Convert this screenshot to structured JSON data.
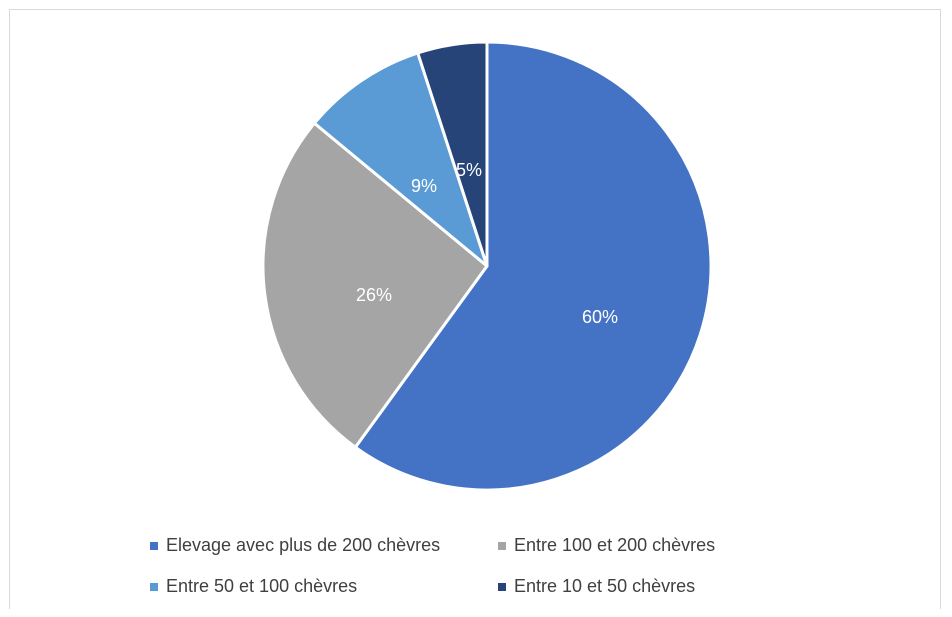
{
  "chart_data": {
    "type": "pie",
    "title": "",
    "slices": [
      {
        "name": "Elevage avec plus de 200 chèvres",
        "value": 60,
        "label": "60%",
        "color": "#4472c4"
      },
      {
        "name": "Entre 100 et 200 chèvres",
        "value": 26,
        "label": "26%",
        "color": "#a5a5a5"
      },
      {
        "name": "Entre 50 et 100 chèvres",
        "value": 9,
        "label": "9%",
        "color": "#5b9bd5"
      },
      {
        "name": "Entre 10 et 50 chèvres",
        "value": 5,
        "label": "5%",
        "color": "#264478"
      }
    ],
    "legend_position": "bottom"
  }
}
